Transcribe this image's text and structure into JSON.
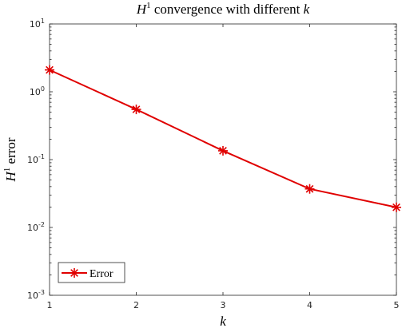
{
  "chart_data": {
    "type": "line",
    "title": {
      "prefix": "H",
      "superscript": "1",
      "text": " convergence with different ",
      "variable": "k"
    },
    "xlabel": "k",
    "ylabel": {
      "prefix": "H",
      "superscript": "1",
      "text": " error"
    },
    "x_ticks": [
      "1",
      "2",
      "3",
      "4",
      "5"
    ],
    "y_ticks": [
      {
        "base": "10",
        "exp": "1",
        "value": 10
      },
      {
        "base": "10",
        "exp": "0",
        "value": 1
      },
      {
        "base": "10",
        "exp": "-1",
        "value": 0.1
      },
      {
        "base": "10",
        "exp": "-2",
        "value": 0.01
      },
      {
        "base": "10",
        "exp": "-3",
        "value": 0.001
      }
    ],
    "xlim": [
      1,
      5
    ],
    "ylim": [
      0.001,
      10
    ],
    "yscale": "log",
    "grid": false,
    "legend_position": "bottom-left",
    "series": [
      {
        "name": "Error",
        "color": "#e00000",
        "marker": "asterisk",
        "x": [
          1,
          2,
          3,
          4,
          5
        ],
        "y": [
          2.1,
          0.55,
          0.135,
          0.037,
          0.0198
        ]
      }
    ]
  }
}
